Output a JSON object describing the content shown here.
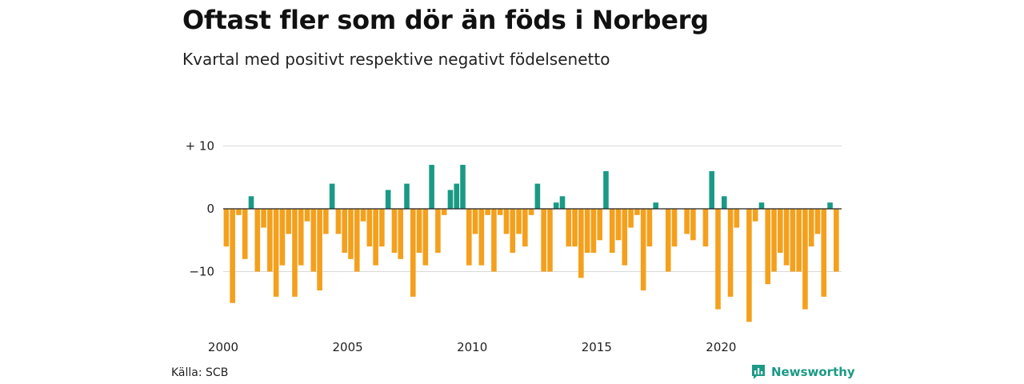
{
  "title": "Oftast fler som dör än föds i Norberg",
  "subtitle": "Kvartal med positivt respektive negativt födelsenetto",
  "source": "Källa: SCB",
  "brand": "Newsworthy",
  "colors": {
    "positive": "#1a9a85",
    "negative": "#f4a01c",
    "grid": "#d9d9d9",
    "zero": "#222222",
    "brand": "#1c9a85"
  },
  "chart_data": {
    "type": "bar",
    "xlabel": "",
    "ylabel": "",
    "ylim": [
      -18,
      10
    ],
    "y_ticks": [
      {
        "value": 10,
        "label": "+ 10"
      },
      {
        "value": 0,
        "label": "0"
      },
      {
        "value": -10,
        "label": "−10"
      }
    ],
    "x_ticks": [
      {
        "index": 0,
        "label": "2000"
      },
      {
        "index": 20,
        "label": "2005"
      },
      {
        "index": 40,
        "label": "2010"
      },
      {
        "index": 60,
        "label": "2015"
      },
      {
        "index": 80,
        "label": "2020"
      }
    ],
    "start": "2000 Q1",
    "frequency": "quarter",
    "grid": true,
    "values": [
      -6,
      -15,
      -1,
      -8,
      2,
      -10,
      -3,
      -10,
      -14,
      -9,
      -4,
      -14,
      -9,
      -2,
      -10,
      -13,
      -4,
      4,
      -4,
      -7,
      -8,
      -10,
      -2,
      -6,
      -9,
      -6,
      3,
      -7,
      -8,
      4,
      -14,
      -7,
      -9,
      7,
      -7,
      -1,
      3,
      4,
      7,
      -9,
      -4,
      -9,
      -1,
      -10,
      -1,
      -4,
      -7,
      -4,
      -6,
      -1,
      4,
      -10,
      -10,
      1,
      2,
      -6,
      -6,
      -11,
      -7,
      -7,
      -5,
      6,
      -7,
      -5,
      -9,
      -3,
      -1,
      -13,
      -6,
      1,
      0,
      -10,
      -6,
      0,
      -4,
      -5,
      0,
      -6,
      6,
      -16,
      2,
      -14,
      -3,
      0,
      -18,
      -2,
      1,
      -12,
      -10,
      -7,
      -9,
      -10,
      -10,
      -16,
      -6,
      -4,
      -14,
      1,
      -10
    ]
  }
}
